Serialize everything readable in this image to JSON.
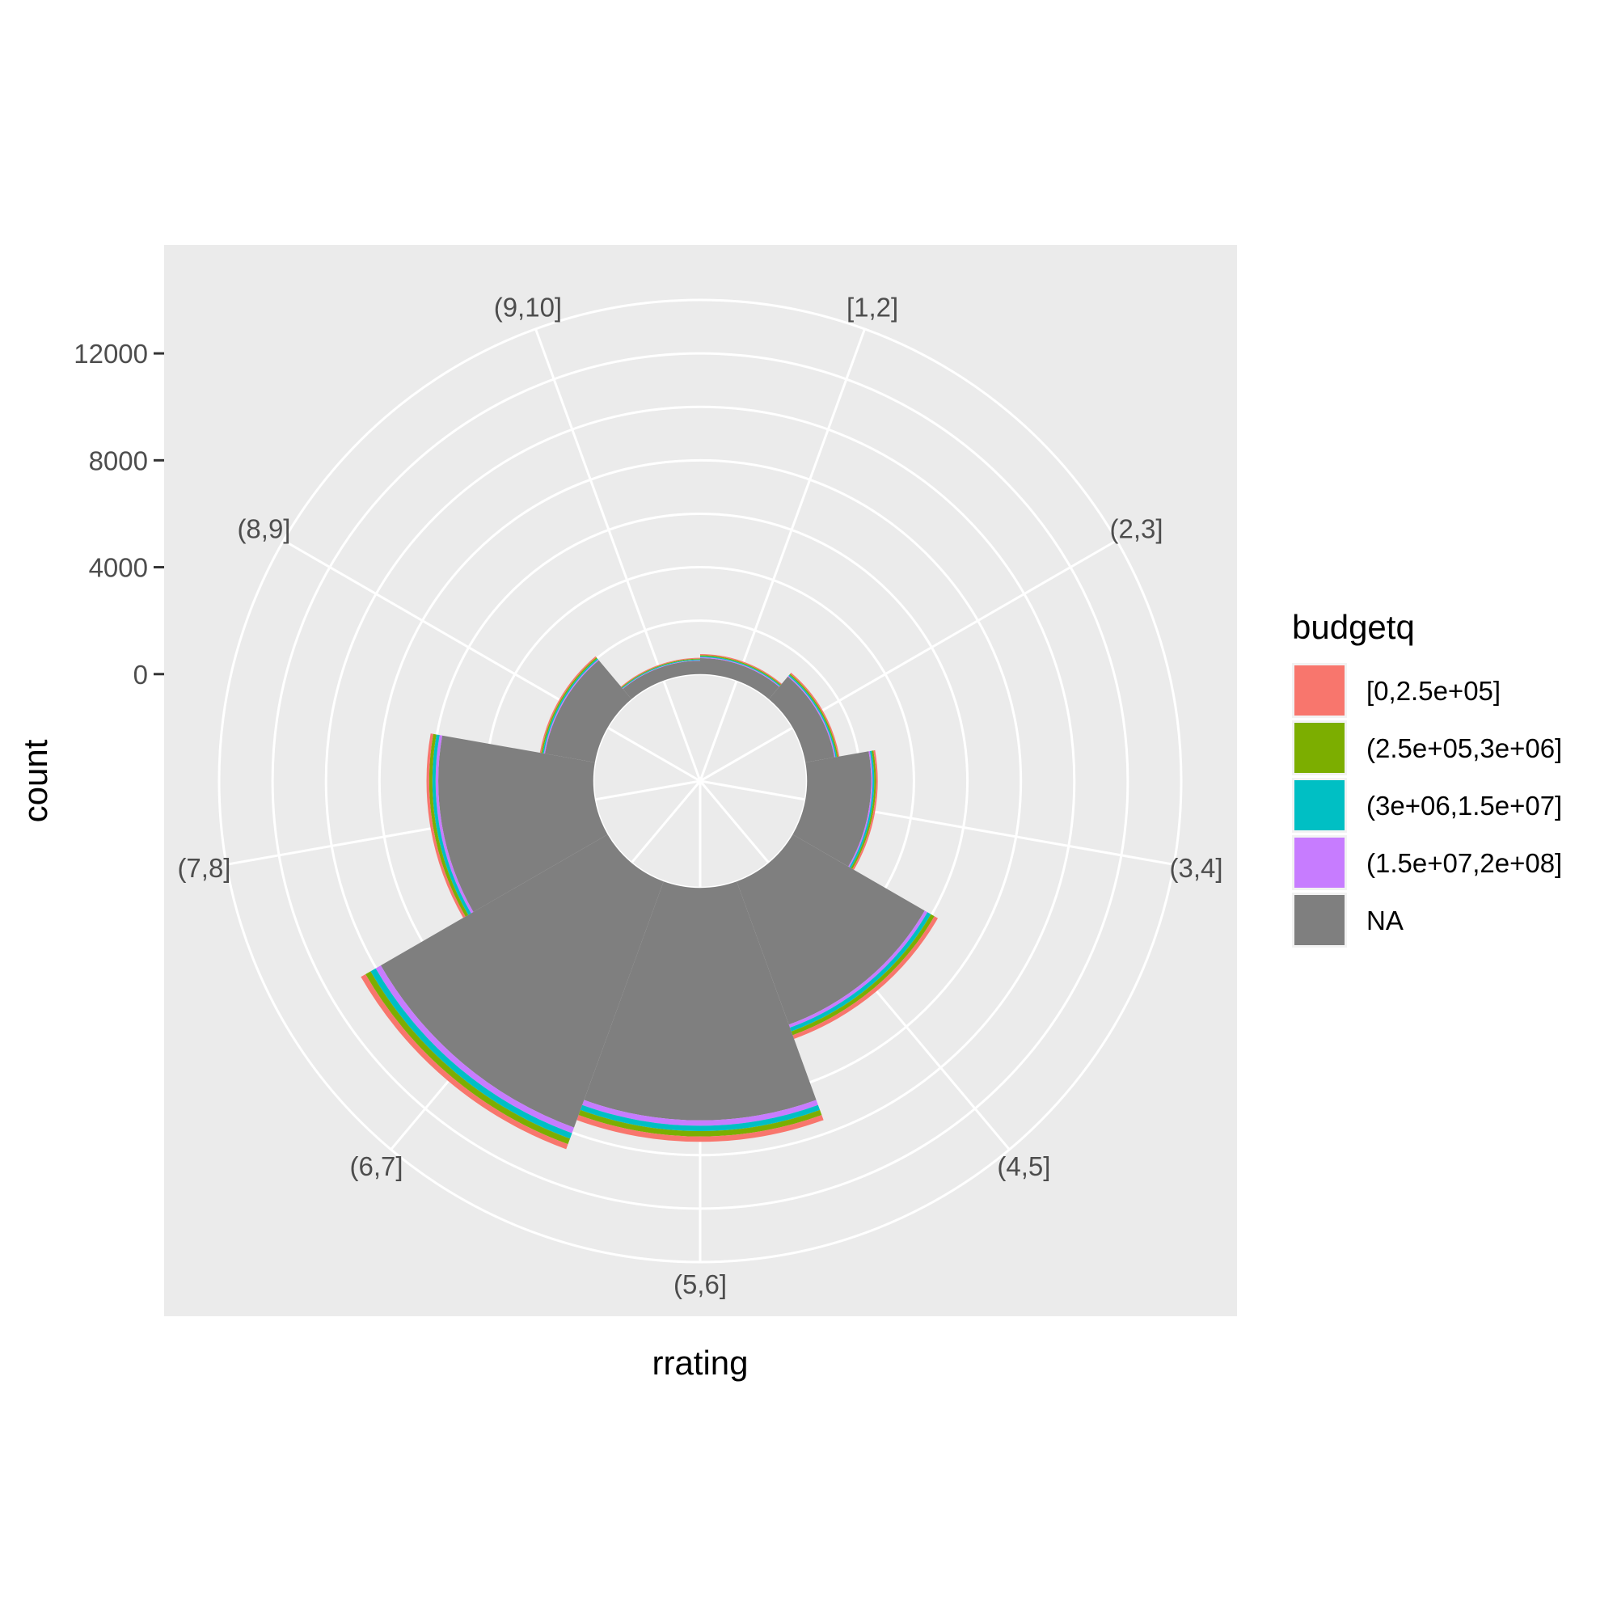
{
  "chart_data": {
    "type": "bar",
    "coord": "polar",
    "stacked": true,
    "xlabel": "rrating",
    "ylabel": "count",
    "categories": [
      "[1,2]",
      "(2,3]",
      "(3,4]",
      "(4,5]",
      "(5,6]",
      "(6,7]",
      "(7,8]",
      "(8,9]",
      "(9,10]"
    ],
    "yticks": [
      0,
      4000,
      8000,
      12000
    ],
    "yticks_labels": [
      "0",
      "4000",
      "8000",
      "12000"
    ],
    "ylim": [
      -4000,
      14000
    ],
    "grid": true,
    "legend": {
      "title": "budgetq",
      "position": "right"
    },
    "series": [
      {
        "name": "[0,2.5e+05]",
        "color": "#F8766D",
        "values": [
          40,
          50,
          65,
          150,
          200,
          200,
          100,
          50,
          30
        ]
      },
      {
        "name": "(2.5e+05,3e+06]",
        "color": "#7CAE00",
        "values": [
          40,
          50,
          65,
          150,
          200,
          220,
          120,
          50,
          30
        ]
      },
      {
        "name": "(3e+06,1.5e+07]",
        "color": "#00BFC4",
        "values": [
          40,
          50,
          65,
          150,
          200,
          220,
          120,
          50,
          30
        ]
      },
      {
        "name": "(1.5e+07,2e+08]",
        "color": "#C77CFF",
        "values": [
          30,
          40,
          50,
          120,
          200,
          220,
          100,
          40,
          20
        ]
      },
      {
        "name": "NA",
        "color": "#7F7F7F",
        "values": [
          600,
          1100,
          2400,
          5700,
          8700,
          9800,
          5800,
          1900,
          500
        ]
      }
    ]
  }
}
